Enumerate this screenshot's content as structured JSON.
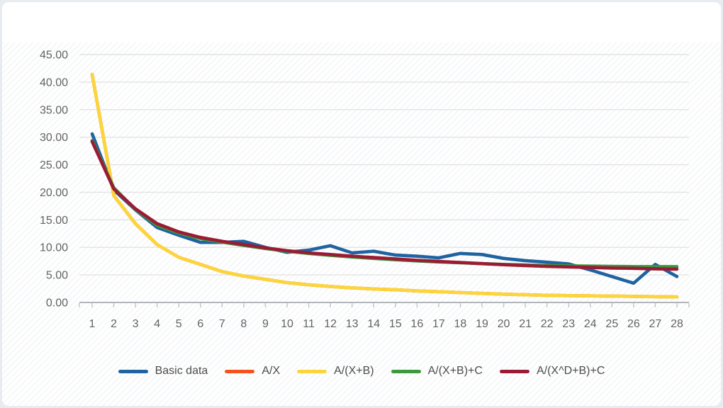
{
  "page": {
    "background_color": "#e8ebef",
    "card_background_color": "#ffffff",
    "title": ""
  },
  "axis_style": {
    "gridline_color": "#e3e3e3",
    "axis_line_color": "#b2b6ba",
    "tick_color": "#c4c8cb",
    "label_color": "#636363"
  },
  "chart_data": {
    "type": "line",
    "title": "",
    "xlabel": "",
    "ylabel": "",
    "x": [
      1,
      2,
      3,
      4,
      5,
      6,
      7,
      8,
      9,
      10,
      11,
      12,
      13,
      14,
      15,
      16,
      17,
      18,
      19,
      20,
      21,
      22,
      23,
      24,
      25,
      26,
      27,
      28
    ],
    "x_tick_labels": [
      "1",
      "2",
      "3",
      "4",
      "5",
      "6",
      "7",
      "8",
      "9",
      "10",
      "11",
      "12",
      "13",
      "14",
      "15",
      "16",
      "17",
      "18",
      "19",
      "20",
      "21",
      "22",
      "23",
      "24",
      "25",
      "26",
      "27",
      "28"
    ],
    "y_tick_labels": [
      "45.00",
      "40.00",
      "35.00",
      "30.00",
      "25.00",
      "20.00",
      "15.00",
      "10.00",
      "5.00",
      "0.00"
    ],
    "y_tick_values": [
      45,
      40,
      35,
      30,
      25,
      20,
      15,
      10,
      5,
      0
    ],
    "ylim": [
      0,
      45
    ],
    "grid": "horizontal",
    "legend_position": "bottom",
    "series": [
      {
        "name": "Basic data",
        "color": "#1f63a0",
        "values": [
          30.6,
          20.4,
          16.8,
          13.6,
          12.2,
          10.9,
          10.9,
          11.1,
          10.0,
          9.1,
          9.5,
          10.3,
          9.0,
          9.3,
          8.6,
          8.4,
          8.1,
          8.9,
          8.7,
          8.0,
          7.6,
          7.3,
          7.0,
          5.9,
          4.7,
          3.5,
          6.9,
          4.7
        ]
      },
      {
        "name": "A/X",
        "color": "#f4531d",
        "values": [
          41.4,
          19.4,
          14.3,
          10.5,
          8.2,
          6.9,
          5.6,
          4.8,
          4.2,
          3.6,
          3.2,
          2.9,
          2.65,
          2.45,
          2.3,
          2.1,
          1.95,
          1.8,
          1.65,
          1.5,
          1.4,
          1.3,
          1.25,
          1.2,
          1.15,
          1.1,
          1.05,
          1.0
        ]
      },
      {
        "name": "A/(X+B)",
        "color": "#fcd53a",
        "values": [
          41.4,
          19.4,
          14.3,
          10.5,
          8.2,
          6.9,
          5.6,
          4.8,
          4.2,
          3.6,
          3.2,
          2.9,
          2.65,
          2.45,
          2.3,
          2.1,
          1.95,
          1.8,
          1.65,
          1.5,
          1.4,
          1.3,
          1.25,
          1.2,
          1.15,
          1.1,
          1.05,
          1.0
        ]
      },
      {
        "name": "A/(X+B)+C",
        "color": "#3a9a3d",
        "values": [
          29.4,
          20.8,
          16.9,
          14.0,
          12.6,
          11.6,
          10.95,
          10.35,
          9.8,
          9.3,
          8.9,
          8.55,
          8.25,
          8.0,
          7.75,
          7.55,
          7.35,
          7.2,
          7.05,
          6.9,
          6.8,
          6.7,
          6.65,
          6.6,
          6.55,
          6.5,
          6.5,
          6.5
        ]
      },
      {
        "name": "A/(X^D+B)+C",
        "color": "#9c1b34",
        "values": [
          29.2,
          20.6,
          17.0,
          14.3,
          12.8,
          11.8,
          11.1,
          10.5,
          9.9,
          9.4,
          9.0,
          8.7,
          8.4,
          8.15,
          7.9,
          7.65,
          7.45,
          7.25,
          7.05,
          6.85,
          6.7,
          6.55,
          6.45,
          6.35,
          6.25,
          6.2,
          6.1,
          6.05
        ]
      }
    ]
  }
}
